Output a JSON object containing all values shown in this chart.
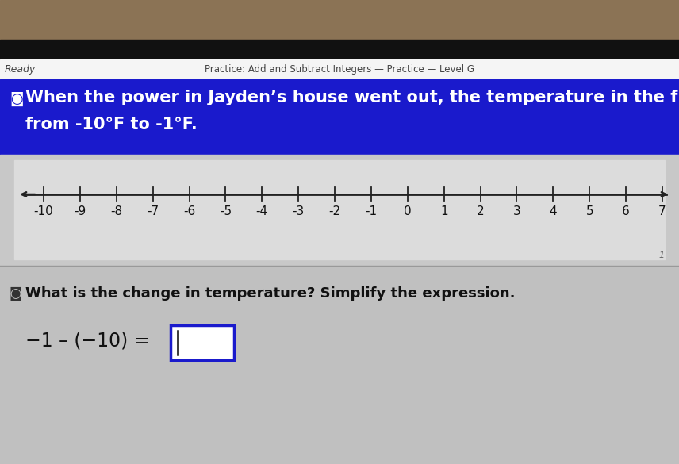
{
  "top_photo_color": "#8b7355",
  "top_dark_bar_color": "#111111",
  "header_bar_color": "#f5f5f5",
  "blue_bar_color": "#1a1acc",
  "number_line_outer_bg": "#c8c8c8",
  "number_line_inner_bg": "#e8e8e8",
  "bottom_bg_color": "#c0c0c0",
  "ready_text": "Ready",
  "title_text": "Practice: Add and Subtract Integers — Practice — Level G",
  "problem_line1": "When the power in Jayden’s house went out, the temperature in the freezer went",
  "problem_line2": "from -10°F to -1°F.",
  "question_text": "What is the change in temperature? Simplify the expression.",
  "expression_text": "−1 – (−10) = ",
  "tick_labels": [
    -10,
    -9,
    -8,
    -7,
    -6,
    -5,
    -4,
    -3,
    -2,
    -1,
    0,
    1,
    2,
    3,
    4,
    5,
    6,
    7
  ],
  "header_fontsize": 8.5,
  "problem_fontsize": 15,
  "question_fontsize": 13,
  "expression_fontsize": 17,
  "tick_fontsize": 11,
  "ready_fontsize": 9
}
